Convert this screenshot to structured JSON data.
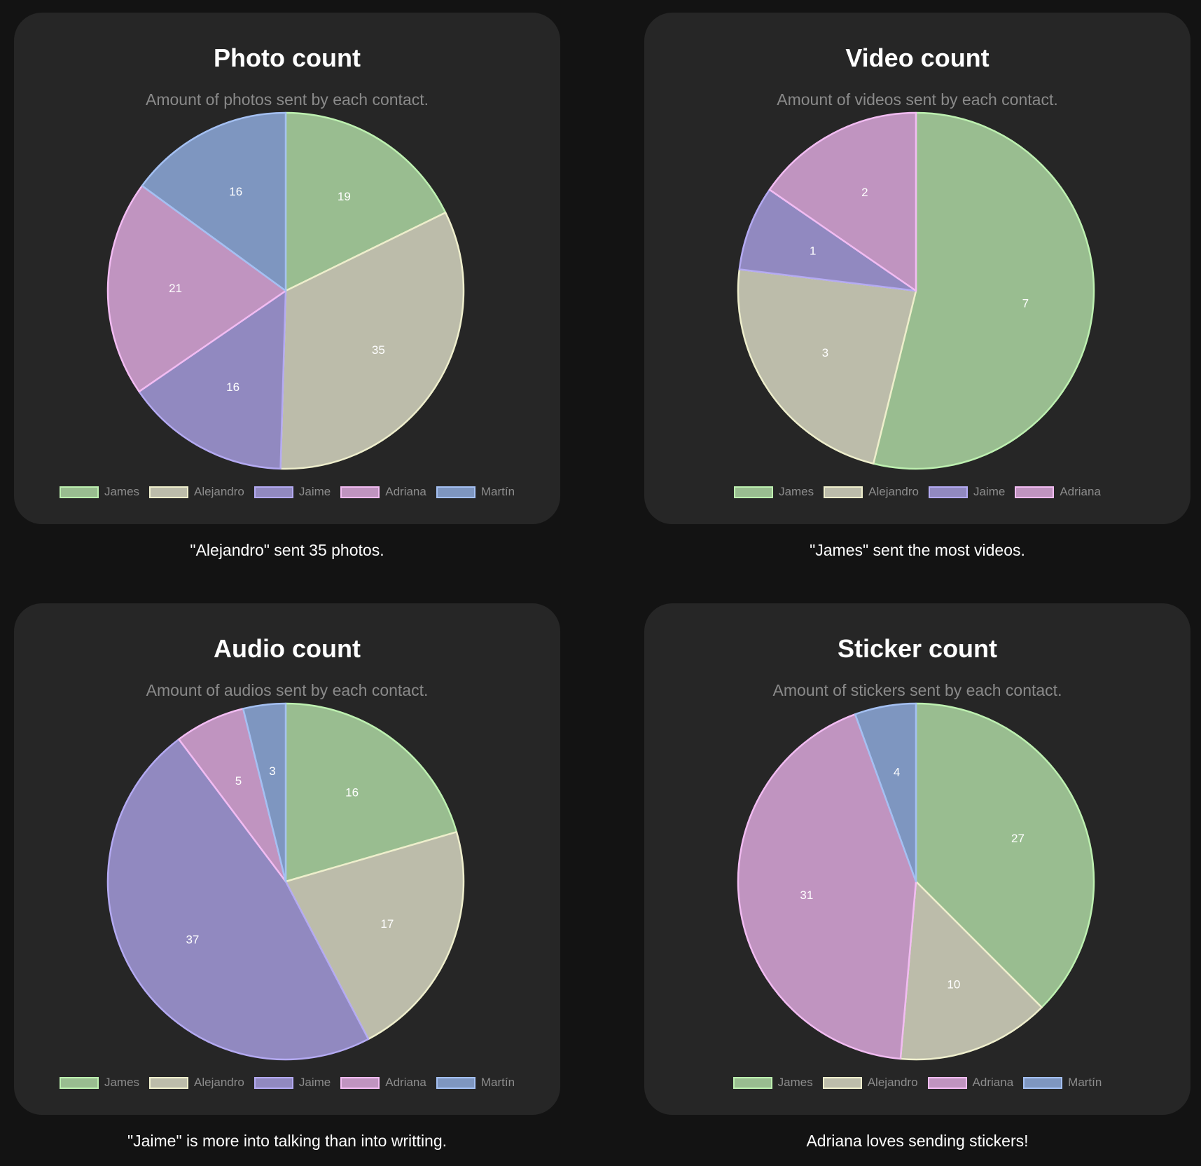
{
  "colors": {
    "James": {
      "fill": "#99bd90",
      "stroke": "#bdf0b0"
    },
    "Alejandro": {
      "fill": "#bcbcaa",
      "stroke": "#eeeecc"
    },
    "Jaime": {
      "fill": "#9189c0",
      "stroke": "#b4aaf2"
    },
    "Adriana": {
      "fill": "#c094c0",
      "stroke": "#f2bcf2"
    },
    "Martín": {
      "fill": "#7e96c0",
      "stroke": "#a4c0f2"
    }
  },
  "chart_data": [
    {
      "type": "pie",
      "title": "Photo count",
      "subtitle": "Amount of photos sent by each contact.",
      "categories": [
        "James",
        "Alejandro",
        "Jaime",
        "Adriana",
        "Martín"
      ],
      "values": [
        19,
        35,
        16,
        21,
        16
      ],
      "caption": "\"Alejandro\" sent 35 photos.",
      "legend": "bottom"
    },
    {
      "type": "pie",
      "title": "Video count",
      "subtitle": "Amount of videos sent by each contact.",
      "categories": [
        "James",
        "Alejandro",
        "Jaime",
        "Adriana"
      ],
      "values": [
        7,
        3,
        1,
        2
      ],
      "caption": "\"James\" sent the most videos.",
      "legend": "bottom"
    },
    {
      "type": "pie",
      "title": "Audio count",
      "subtitle": "Amount of audios sent by each contact.",
      "categories": [
        "James",
        "Alejandro",
        "Jaime",
        "Adriana",
        "Martín"
      ],
      "values": [
        16,
        17,
        37,
        5,
        3
      ],
      "caption": "\"Jaime\" is more into talking than into writting.",
      "legend": "bottom"
    },
    {
      "type": "pie",
      "title": "Sticker count",
      "subtitle": "Amount of stickers sent by each contact.",
      "categories": [
        "James",
        "Alejandro",
        "Adriana",
        "Martín"
      ],
      "values": [
        27,
        10,
        31,
        4
      ],
      "caption": "Adriana loves sending stickers!",
      "legend": "bottom"
    }
  ]
}
